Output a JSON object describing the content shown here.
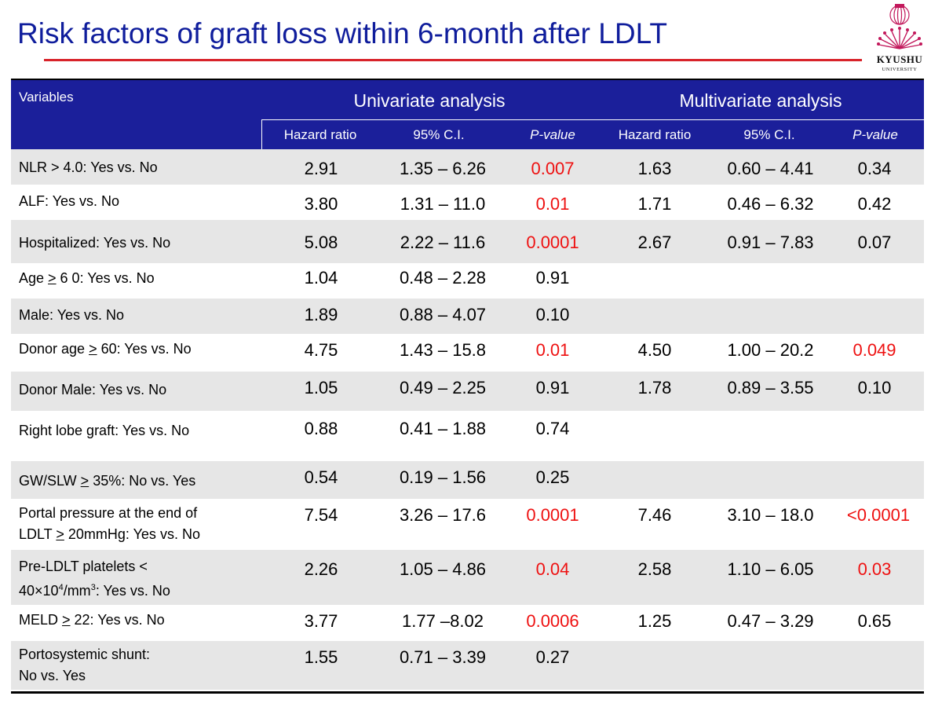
{
  "title": "Risk factors of graft loss within 6-month after LDLT",
  "logo": {
    "name": "KYUSHU",
    "sub": "UNIVERSITY"
  },
  "header": {
    "variables": "Variables",
    "univariate": "Univariate analysis",
    "multivariate": "Multivariate analysis",
    "hazard_ratio": "Hazard ratio",
    "ci": "95% C.I.",
    "pvalue": "P-value"
  },
  "colors": {
    "header_bg": "#1b1f9a",
    "title": "#0f1d9c",
    "significant": "#ee1111",
    "shade": "#e6e6e6"
  },
  "rows": [
    {
      "label": "NLR > 4.0: Yes vs. No",
      "u_hr": "2.91",
      "u_ci": "1.35 – 6.26",
      "u_p": "0.007",
      "m_hr": "1.63",
      "m_ci": "0.60 – 4.41",
      "m_p": "0.34"
    },
    {
      "label": "ALF: Yes vs. No",
      "u_hr": "3.80",
      "u_ci": "1.31 – 11.0",
      "u_p": "0.01",
      "m_hr": "1.71",
      "m_ci": "0.46 – 6.32",
      "m_p": "0.42"
    },
    {
      "label": "Hospitalized: Yes vs. No",
      "u_hr": "5.08",
      "u_ci": "2.22 – 11.6",
      "u_p": "0.0001",
      "m_hr": "2.67",
      "m_ci": "0.91 – 7.83",
      "m_p": "0.07"
    },
    {
      "label_pre": "Age ",
      "label_ul": ">",
      "label_post": " 6 0: Yes vs. No",
      "u_hr": "1.04",
      "u_ci": "0.48 – 2.28",
      "u_p": "0.91"
    },
    {
      "label": "Male: Yes vs. No",
      "u_hr": "1.89",
      "u_ci": "0.88 – 4.07",
      "u_p": "0.10"
    },
    {
      "label_pre": "Donor age ",
      "label_ul": ">",
      "label_post": " 60: Yes vs. No",
      "u_hr": "4.75",
      "u_ci": "1.43 – 15.8",
      "u_p": "0.01",
      "m_hr": "4.50",
      "m_ci": "1.00 – 20.2",
      "m_p": "0.049"
    },
    {
      "label": "Donor Male: Yes vs. No",
      "u_hr": "1.05",
      "u_ci": "0.49 – 2.25",
      "u_p": "0.91",
      "m_hr": "1.78",
      "m_ci": "0.89 – 3.55",
      "m_p": "0.10"
    },
    {
      "label": "Right lobe graft: Yes vs. No",
      "u_hr": "0.88",
      "u_ci": "0.41 – 1.88",
      "u_p": "0.74"
    },
    {
      "label_pre": "GW/SLW ",
      "label_ul": ">",
      "label_post": " 35%: No vs. Yes",
      "u_hr": "0.54",
      "u_ci": "0.19 – 1.56",
      "u_p": "0.25"
    },
    {
      "label": "Portal pressure at the end of",
      "label2_pre": "LDLT ",
      "label2_ul": ">",
      "label2_post": " 20mmHg: Yes vs. No",
      "u_hr": "7.54",
      "u_ci": "3.26 – 17.6",
      "u_p": "0.0001",
      "m_hr": "7.46",
      "m_ci": "3.10 – 18.0",
      "m_p": "<0.0001"
    },
    {
      "label": "Pre-LDLT platelets <",
      "label2_a": "40×10",
      "label2_sup1": "4",
      "label2_b": "/mm",
      "label2_sup2": "3",
      "label2_c": ": Yes vs. No",
      "u_hr": "2.26",
      "u_ci": "1.05 – 4.86",
      "u_p": "0.04",
      "m_hr": "2.58",
      "m_ci": "1.10 – 6.05",
      "m_p": "0.03"
    },
    {
      "label_pre": "MELD ",
      "label_ul": ">",
      "label_post": " 22: Yes vs. No",
      "u_hr": "3.77",
      "u_ci": "1.77 –8.02",
      "u_p": "0.0006",
      "m_hr": "1.25",
      "m_ci": "0.47 – 3.29",
      "m_p": "0.65"
    },
    {
      "label": "Portosystemic shunt:",
      "label2": "No vs. Yes",
      "u_hr": "1.55",
      "u_ci": "0.71 – 3.39",
      "u_p": "0.27"
    }
  ]
}
